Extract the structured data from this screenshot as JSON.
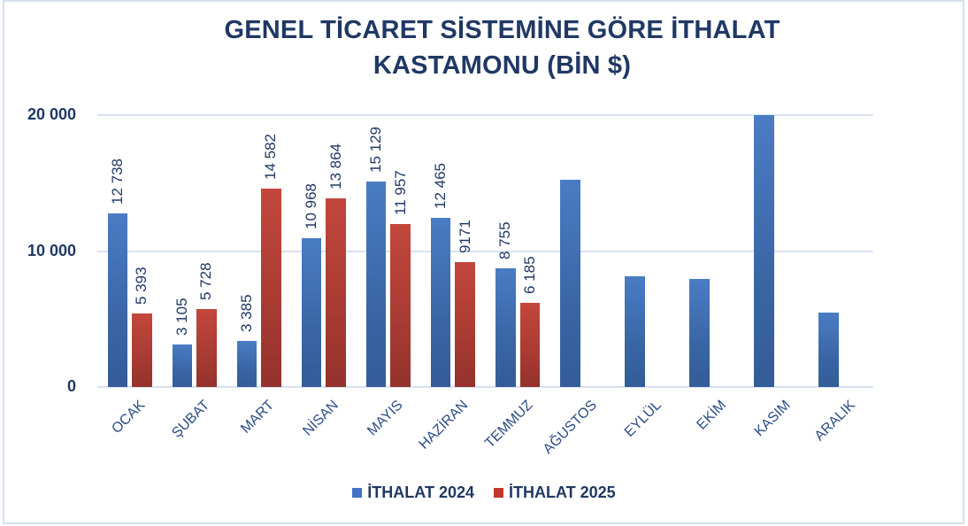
{
  "chart": {
    "title_line1": "GENEL TİCARET SİSTEMİNE GÖRE İTHALAT",
    "title_line2": "KASTAMONU (BİN $)",
    "y_ticks": [
      "0",
      "10 000",
      "20 000"
    ],
    "legend": [
      {
        "label": "İTHALAT 2024",
        "color": "#4472c4"
      },
      {
        "label": "İTHALAT 2025",
        "color": "#c0392b"
      }
    ]
  },
  "chart_data": {
    "type": "bar",
    "title": "GENEL TİCARET SİSTEMİNE GÖRE İTHALAT KASTAMONU (BİN $)",
    "xlabel": "",
    "ylabel": "",
    "ylim": [
      0,
      20000
    ],
    "yticks": [
      0,
      10000,
      20000
    ],
    "grid": true,
    "legend_position": "bottom",
    "categories": [
      "OCAK",
      "ŞUBAT",
      "MART",
      "NİSAN",
      "MAYIS",
      "HAZİRAN",
      "TEMMUZ",
      "AĞUSTOS",
      "EYLÜL",
      "EKİM",
      "KASIM",
      "ARALIK"
    ],
    "series": [
      {
        "name": "İTHALAT 2024",
        "color": "#4472c4",
        "values": [
          12738,
          3105,
          3385,
          10968,
          15129,
          12465,
          8755,
          15230,
          8140,
          7960,
          20000,
          5490
        ],
        "labels": [
          "12 738",
          "3 105",
          "3 385",
          "10 968",
          "15 129",
          "12 465",
          "8 755",
          null,
          null,
          null,
          null,
          null
        ]
      },
      {
        "name": "İTHALAT 2025",
        "color": "#c0392b",
        "values": [
          5393,
          5728,
          14582,
          13864,
          11957,
          9171,
          6185,
          null,
          null,
          null,
          null,
          null
        ],
        "labels": [
          "5 393",
          "5 728",
          "14 582",
          "13 864",
          "11 957",
          "9171",
          "6 185",
          null,
          null,
          null,
          null,
          null
        ]
      }
    ]
  }
}
